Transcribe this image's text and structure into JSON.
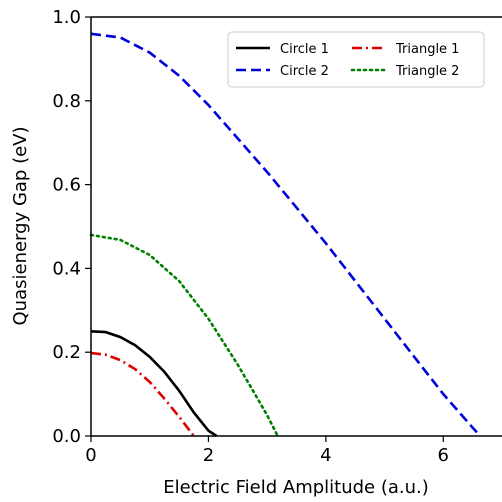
{
  "chart_data": {
    "type": "line",
    "title": "",
    "xlabel": "Electric Field Amplitude (a.u.)",
    "ylabel": "Quasienergy Gap (eV)",
    "xlim": [
      0,
      7
    ],
    "ylim": [
      0,
      1.0
    ],
    "xticks": [
      0,
      2,
      4,
      6
    ],
    "yticks": [
      0.0,
      0.2,
      0.4,
      0.6,
      0.8,
      1.0
    ],
    "xtick_labels": [
      "0",
      "2",
      "4",
      "6"
    ],
    "ytick_labels": [
      "0.0",
      "0.2",
      "0.4",
      "0.6",
      "0.8",
      "1.0"
    ],
    "grid": false,
    "legend_position": "top-right",
    "legend_columns": 2,
    "series": [
      {
        "name": "Circle 1",
        "color": "#000000",
        "dash": "solid",
        "x": [
          0,
          0.25,
          0.5,
          0.75,
          1.0,
          1.25,
          1.5,
          1.75,
          2.0,
          2.14
        ],
        "y": [
          0.25,
          0.248,
          0.236,
          0.217,
          0.189,
          0.153,
          0.108,
          0.056,
          0.013,
          0.0
        ]
      },
      {
        "name": "Circle 2",
        "color": "#0000dd",
        "dash": "dashed",
        "x": [
          0,
          0.5,
          1.0,
          1.5,
          2.0,
          2.5,
          3.0,
          3.5,
          4.0,
          4.5,
          5.0,
          5.5,
          6.0,
          6.5,
          6.63
        ],
        "y": [
          0.96,
          0.951,
          0.915,
          0.86,
          0.79,
          0.71,
          0.63,
          0.545,
          0.46,
          0.37,
          0.28,
          0.19,
          0.1,
          0.02,
          0.0
        ]
      },
      {
        "name": "Triangle 1",
        "color": "#dd0000",
        "dash": "dashdot",
        "x": [
          0,
          0.25,
          0.5,
          0.75,
          1.0,
          1.25,
          1.5,
          1.75
        ],
        "y": [
          0.198,
          0.194,
          0.181,
          0.16,
          0.129,
          0.089,
          0.046,
          0.0
        ]
      },
      {
        "name": "Triangle 2",
        "color": "#008000",
        "dash": "dotted",
        "x": [
          0,
          0.5,
          1.0,
          1.5,
          2.0,
          2.5,
          2.75,
          3.0,
          3.18
        ],
        "y": [
          0.48,
          0.468,
          0.432,
          0.37,
          0.28,
          0.17,
          0.11,
          0.05,
          0.0
        ]
      }
    ]
  }
}
